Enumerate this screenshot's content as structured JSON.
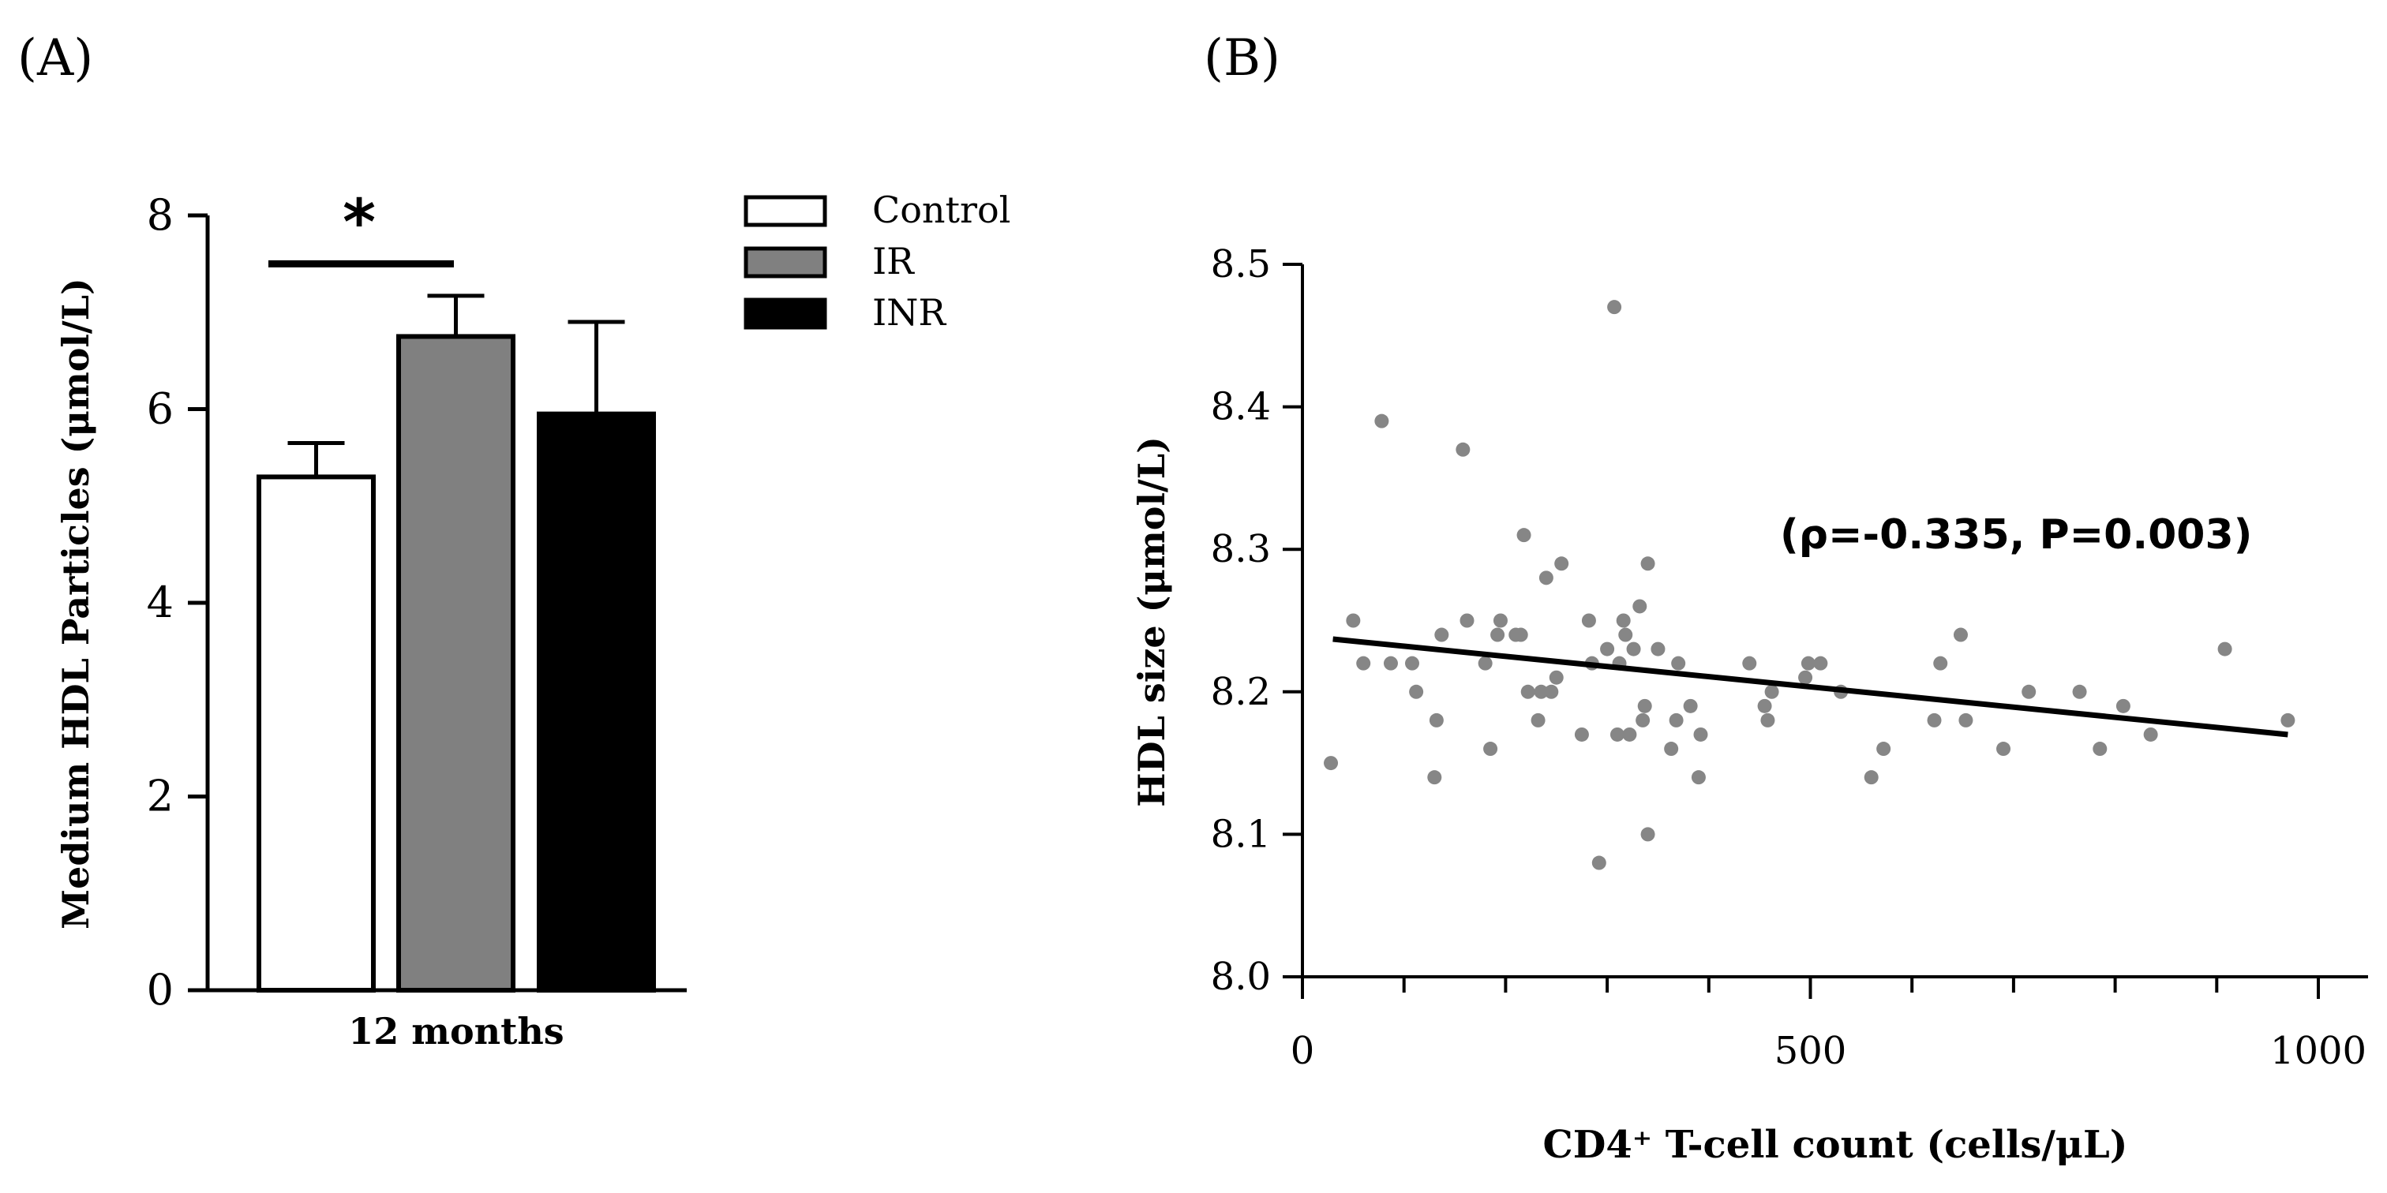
{
  "chart_data": [
    {
      "panel_label": "(A)",
      "type": "bar",
      "categories": [
        "12 months"
      ],
      "series": [
        {
          "name": "Control",
          "values": [
            5.3
          ],
          "error": [
            0.35
          ],
          "color": "#ffffff"
        },
        {
          "name": "IR",
          "values": [
            6.75
          ],
          "error": [
            0.42
          ],
          "color": "#808080"
        },
        {
          "name": "INR",
          "values": [
            5.95
          ],
          "error": [
            0.95
          ],
          "color": "#000000"
        }
      ],
      "ylabel": "Medium HDL Particles (μmol/L)",
      "xlabel": "",
      "ylim": [
        0,
        8
      ],
      "yticks": [
        "0",
        "2",
        "4",
        "6",
        "8"
      ],
      "legend": [
        "Control",
        "IR",
        "INR"
      ],
      "legend_position": "top-right",
      "significance": {
        "between": [
          "Control",
          "IR"
        ],
        "marker": "*",
        "y": 7.5
      }
    },
    {
      "panel_label": "(B)",
      "type": "scatter",
      "xlabel": "CD4⁺ T-cell count (cells/μL)",
      "ylabel": "HDL size (μmol/L)",
      "xlim": [
        0,
        1050
      ],
      "ylim": [
        8.0,
        8.5
      ],
      "xticks": [
        "0",
        "500",
        "1000"
      ],
      "yticks": [
        "8.0",
        "8.1",
        "8.2",
        "8.3",
        "8.4",
        "8.5"
      ],
      "annotation": "(ρ=-0.335, P=0.003)",
      "regression_line": {
        "x": [
          30,
          970
        ],
        "y": [
          8.237,
          8.17
        ]
      },
      "points": [
        {
          "x": 28,
          "y": 8.15
        },
        {
          "x": 50,
          "y": 8.25
        },
        {
          "x": 60,
          "y": 8.22
        },
        {
          "x": 78,
          "y": 8.39
        },
        {
          "x": 87,
          "y": 8.22
        },
        {
          "x": 108,
          "y": 8.22
        },
        {
          "x": 112,
          "y": 8.2
        },
        {
          "x": 130,
          "y": 8.14
        },
        {
          "x": 132,
          "y": 8.18
        },
        {
          "x": 137,
          "y": 8.24
        },
        {
          "x": 158,
          "y": 8.37
        },
        {
          "x": 162,
          "y": 8.25
        },
        {
          "x": 180,
          "y": 8.22
        },
        {
          "x": 185,
          "y": 8.16
        },
        {
          "x": 192,
          "y": 8.24
        },
        {
          "x": 195,
          "y": 8.25
        },
        {
          "x": 210,
          "y": 8.24
        },
        {
          "x": 215,
          "y": 8.24
        },
        {
          "x": 218,
          "y": 8.31
        },
        {
          "x": 222,
          "y": 8.2
        },
        {
          "x": 232,
          "y": 8.18
        },
        {
          "x": 235,
          "y": 8.2
        },
        {
          "x": 240,
          "y": 8.28
        },
        {
          "x": 245,
          "y": 8.2
        },
        {
          "x": 250,
          "y": 8.21
        },
        {
          "x": 255,
          "y": 8.29
        },
        {
          "x": 275,
          "y": 8.17
        },
        {
          "x": 282,
          "y": 8.25
        },
        {
          "x": 285,
          "y": 8.22
        },
        {
          "x": 292,
          "y": 8.08
        },
        {
          "x": 300,
          "y": 8.23
        },
        {
          "x": 307,
          "y": 8.47
        },
        {
          "x": 310,
          "y": 8.17
        },
        {
          "x": 312,
          "y": 8.22
        },
        {
          "x": 316,
          "y": 8.25
        },
        {
          "x": 318,
          "y": 8.24
        },
        {
          "x": 322,
          "y": 8.17
        },
        {
          "x": 326,
          "y": 8.23
        },
        {
          "x": 332,
          "y": 8.26
        },
        {
          "x": 335,
          "y": 8.18
        },
        {
          "x": 337,
          "y": 8.19
        },
        {
          "x": 340,
          "y": 8.29
        },
        {
          "x": 340,
          "y": 8.1
        },
        {
          "x": 350,
          "y": 8.23
        },
        {
          "x": 363,
          "y": 8.16
        },
        {
          "x": 368,
          "y": 8.18
        },
        {
          "x": 370,
          "y": 8.22
        },
        {
          "x": 382,
          "y": 8.19
        },
        {
          "x": 390,
          "y": 8.14
        },
        {
          "x": 392,
          "y": 8.17
        },
        {
          "x": 440,
          "y": 8.22
        },
        {
          "x": 455,
          "y": 8.19
        },
        {
          "x": 458,
          "y": 8.18
        },
        {
          "x": 462,
          "y": 8.2
        },
        {
          "x": 495,
          "y": 8.21
        },
        {
          "x": 498,
          "y": 8.22
        },
        {
          "x": 510,
          "y": 8.22
        },
        {
          "x": 530,
          "y": 8.2
        },
        {
          "x": 560,
          "y": 8.14
        },
        {
          "x": 572,
          "y": 8.16
        },
        {
          "x": 622,
          "y": 8.18
        },
        {
          "x": 628,
          "y": 8.22
        },
        {
          "x": 648,
          "y": 8.24
        },
        {
          "x": 653,
          "y": 8.18
        },
        {
          "x": 690,
          "y": 8.16
        },
        {
          "x": 715,
          "y": 8.2
        },
        {
          "x": 765,
          "y": 8.2
        },
        {
          "x": 785,
          "y": 8.16
        },
        {
          "x": 808,
          "y": 8.19
        },
        {
          "x": 835,
          "y": 8.17
        },
        {
          "x": 908,
          "y": 8.23
        },
        {
          "x": 970,
          "y": 8.18
        }
      ]
    }
  ]
}
